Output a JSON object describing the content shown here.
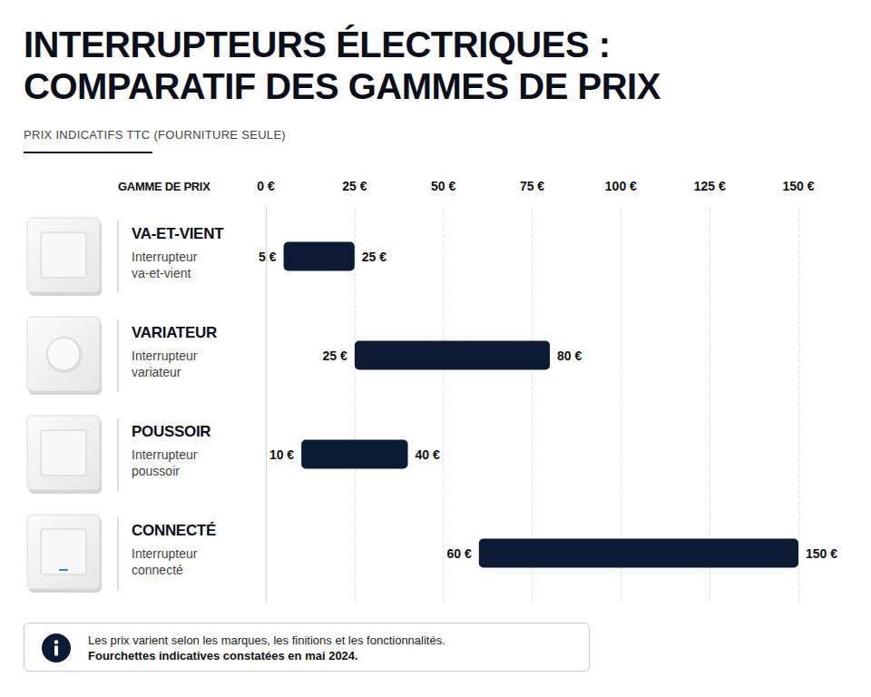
{
  "chart_data": {
    "type": "bar",
    "orientation": "horizontal",
    "title": "INTERRUPTEURS ÉLECTRIQUES :\nCOMPARATIF DES GAMMES DE PRIX",
    "subtitle": "PRIX INDICATIFS TTC (FOURNITURE SEULE)",
    "y_label": "GAMME DE PRIX",
    "categories": [
      "VA-ET-VIENT",
      "VARIATEUR",
      "POUSSOIR",
      "CONNECTÉ"
    ],
    "category_descriptions": [
      "Interrupteur va-et-vient",
      "Interrupteur variateur",
      "Interrupteur poussoir",
      "Interrupteur connecté"
    ],
    "values": [
      [
        5,
        25
      ],
      [
        25,
        80
      ],
      [
        10,
        40
      ],
      [
        60,
        150
      ]
    ],
    "value_labels": [
      [
        "5 €",
        "25 €"
      ],
      [
        "25 €",
        "80 €"
      ],
      [
        "10 €",
        "40 €"
      ],
      [
        "60 €",
        "150 €"
      ]
    ],
    "color": "#0d1a33",
    "xlim": [
      0,
      150
    ],
    "xticks": [
      {
        "value": 0,
        "label": "0 €"
      },
      {
        "value": 25,
        "label": "25 €"
      },
      {
        "value": 50,
        "label": "50 €"
      },
      {
        "value": 75,
        "label": "75 €"
      },
      {
        "value": 100,
        "label": "100 €"
      },
      {
        "value": 125,
        "label": "125 €"
      },
      {
        "value": 150,
        "label": "150 €"
      }
    ],
    "grid": true,
    "data_labels": true,
    "note": "Les prix varient selon les marques, les finitions et les fonctionnalités.",
    "note_bold": "Fourchettes indicatives constatées en mai 2024."
  }
}
